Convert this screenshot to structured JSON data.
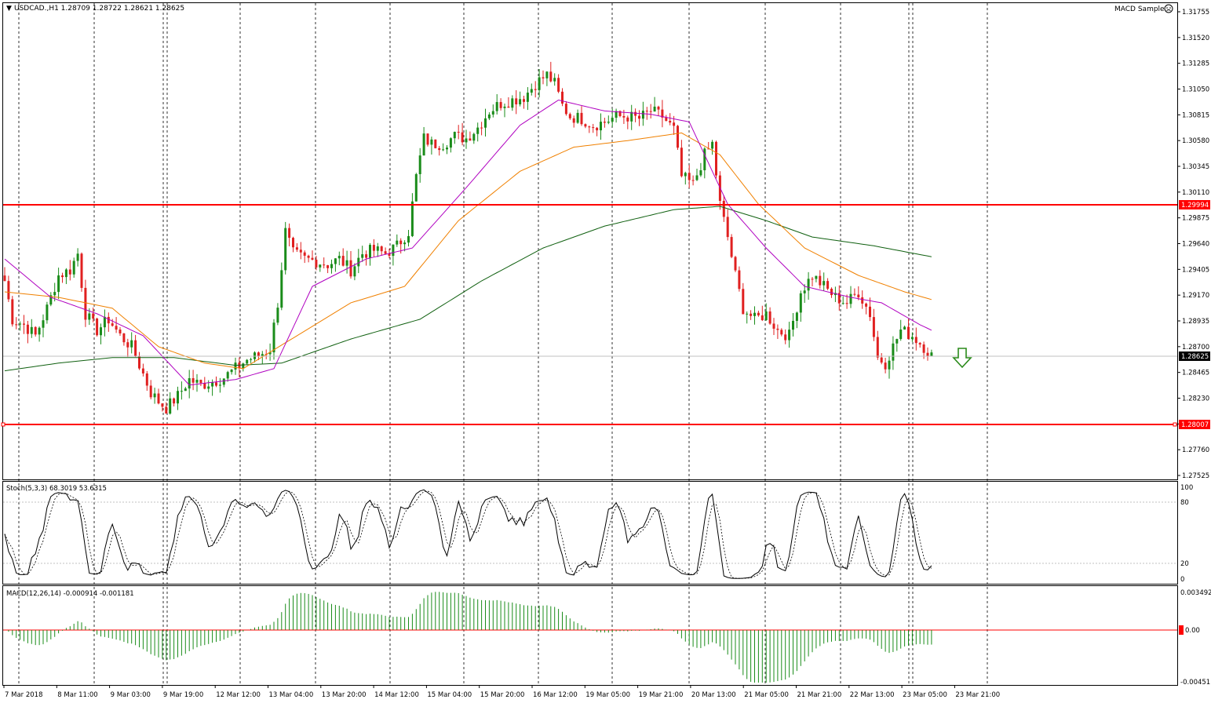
{
  "chart_title": "USDCAD.,H1  1.28709 1.28722 1.28621 1.28625",
  "expert_label": "MACD Sample",
  "colors": {
    "bull": "#1a8c1a",
    "bear": "#e02020",
    "level": "#ff0000",
    "ma_fast": "#b000c0",
    "ma_mid": "#f08000",
    "ma_slow": "#106010",
    "macd_hist": "#1a8c1a",
    "arrow": "#2a8a1a"
  },
  "price_levels": {
    "upper": "1.29994",
    "lower": "1.28007",
    "current": "1.28625"
  },
  "price_ticks": [
    "1.31755",
    "1.31520",
    "1.31285",
    "1.31050",
    "1.30815",
    "1.30580",
    "1.30345",
    "1.30110",
    "1.29875",
    "1.29640",
    "1.29405",
    "1.29170",
    "1.28935",
    "1.28700",
    "1.28465",
    "1.28230",
    "1.27995",
    "1.27760",
    "1.27525"
  ],
  "time_labels": [
    "7 Mar 2018",
    "8 Mar 11:00",
    "9 Mar 03:00",
    "9 Mar 19:00",
    "12 Mar 12:00",
    "13 Mar 04:00",
    "13 Mar 20:00",
    "14 Mar 12:00",
    "15 Mar 04:00",
    "15 Mar 20:00",
    "16 Mar 12:00",
    "19 Mar 05:00",
    "19 Mar 21:00",
    "20 Mar 13:00",
    "21 Mar 05:00",
    "21 Mar 21:00",
    "22 Mar 13:00",
    "23 Mar 05:00",
    "23 Mar 21:00"
  ],
  "stoch": {
    "label": "Stoch(5,3,3) 68.3019 53.6315",
    "ticks": [
      "100",
      "80",
      "20",
      "0"
    ]
  },
  "macd": {
    "label": "MACD(12,26,14) -0.000914 -0.001181",
    "ticks": [
      "0.003492",
      "0.00",
      "-0.00451"
    ]
  },
  "signal_arrow": "down-arrow-icon",
  "chart_data": {
    "type": "candlestick",
    "symbol": "USDCAD",
    "timeframe": "H1",
    "ylim": [
      1.27525,
      1.31755
    ],
    "horizontal_lines": [
      1.29994,
      1.28007
    ],
    "anchors": [
      [
        0,
        1.293
      ],
      [
        2,
        1.2895
      ],
      [
        5,
        1.289
      ],
      [
        8,
        1.288
      ],
      [
        11,
        1.2905
      ],
      [
        14,
        1.2935
      ],
      [
        17,
        1.294
      ],
      [
        19,
        1.2955
      ],
      [
        21,
        1.29
      ],
      [
        24,
        1.2885
      ],
      [
        27,
        1.2895
      ],
      [
        30,
        1.288
      ],
      [
        33,
        1.287
      ],
      [
        36,
        1.2845
      ],
      [
        38,
        1.2828
      ],
      [
        40,
        1.282
      ],
      [
        42,
        1.2814
      ],
      [
        45,
        1.2825
      ],
      [
        48,
        1.284
      ],
      [
        51,
        1.2835
      ],
      [
        54,
        1.2838
      ],
      [
        57,
        1.2842
      ],
      [
        60,
        1.285
      ],
      [
        63,
        1.2858
      ],
      [
        66,
        1.2862
      ],
      [
        69,
        1.2868
      ],
      [
        71,
        1.291
      ],
      [
        73,
        1.2975
      ],
      [
        75,
        1.2955
      ],
      [
        78,
        1.295
      ],
      [
        81,
        1.2948
      ],
      [
        84,
        1.2945
      ],
      [
        87,
        1.295
      ],
      [
        90,
        1.294
      ],
      [
        93,
        1.2955
      ],
      [
        96,
        1.2958
      ],
      [
        99,
        1.2955
      ],
      [
        102,
        1.2962
      ],
      [
        105,
        1.2975
      ],
      [
        107,
        1.3025
      ],
      [
        109,
        1.306
      ],
      [
        111,
        1.3055
      ],
      [
        114,
        1.3055
      ],
      [
        117,
        1.3062
      ],
      [
        120,
        1.306
      ],
      [
        123,
        1.307
      ],
      [
        126,
        1.3085
      ],
      [
        129,
        1.3092
      ],
      [
        132,
        1.3095
      ],
      [
        135,
        1.3098
      ],
      [
        138,
        1.311
      ],
      [
        141,
        1.3118
      ],
      [
        143,
        1.311
      ],
      [
        145,
        1.309
      ],
      [
        147,
        1.308
      ],
      [
        150,
        1.3078
      ],
      [
        153,
        1.3072
      ],
      [
        156,
        1.3075
      ],
      [
        159,
        1.308
      ],
      [
        162,
        1.308
      ],
      [
        165,
        1.3078
      ],
      [
        168,
        1.3085
      ],
      [
        171,
        1.308
      ],
      [
        174,
        1.3068
      ],
      [
        176,
        1.3025
      ],
      [
        179,
        1.3018
      ],
      [
        182,
        1.3045
      ],
      [
        184,
        1.3055
      ],
      [
        186,
        1.3
      ],
      [
        188,
        1.297
      ],
      [
        190,
        1.2935
      ],
      [
        192,
        1.2905
      ],
      [
        195,
        1.2895
      ],
      [
        198,
        1.29
      ],
      [
        201,
        1.2885
      ],
      [
        204,
        1.288
      ],
      [
        207,
        1.292
      ],
      [
        210,
        1.2935
      ],
      [
        213,
        1.2925
      ],
      [
        216,
        1.2915
      ],
      [
        219,
        1.291
      ],
      [
        222,
        1.292
      ],
      [
        225,
        1.29
      ],
      [
        227,
        1.286
      ],
      [
        229,
        1.2855
      ],
      [
        231,
        1.287
      ],
      [
        233,
        1.2885
      ],
      [
        236,
        1.288
      ],
      [
        239,
        1.287
      ],
      [
        241,
        1.2862
      ]
    ],
    "ma_fast": [
      [
        0,
        1.295
      ],
      [
        12,
        1.2915
      ],
      [
        24,
        1.29
      ],
      [
        36,
        1.288
      ],
      [
        48,
        1.2835
      ],
      [
        60,
        1.284
      ],
      [
        70,
        1.285
      ],
      [
        80,
        1.2925
      ],
      [
        94,
        1.295
      ],
      [
        106,
        1.296
      ],
      [
        120,
        1.3015
      ],
      [
        134,
        1.3072
      ],
      [
        144,
        1.3095
      ],
      [
        156,
        1.3085
      ],
      [
        168,
        1.3082
      ],
      [
        178,
        1.3075
      ],
      [
        188,
        1.3
      ],
      [
        198,
        1.296
      ],
      [
        208,
        1.2925
      ],
      [
        220,
        1.2915
      ],
      [
        228,
        1.291
      ],
      [
        238,
        1.289
      ],
      [
        241,
        1.2885
      ]
    ],
    "ma_mid": [
      [
        0,
        1.292
      ],
      [
        14,
        1.2915
      ],
      [
        28,
        1.2905
      ],
      [
        40,
        1.287
      ],
      [
        52,
        1.2855
      ],
      [
        62,
        1.285
      ],
      [
        76,
        1.288
      ],
      [
        90,
        1.291
      ],
      [
        104,
        1.2925
      ],
      [
        118,
        1.2985
      ],
      [
        134,
        1.303
      ],
      [
        148,
        1.3052
      ],
      [
        162,
        1.3058
      ],
      [
        176,
        1.3065
      ],
      [
        186,
        1.3045
      ],
      [
        196,
        1.3
      ],
      [
        208,
        1.296
      ],
      [
        222,
        1.2935
      ],
      [
        234,
        1.292
      ],
      [
        241,
        1.2913
      ]
    ],
    "ma_slow": [
      [
        0,
        1.2848
      ],
      [
        14,
        1.2855
      ],
      [
        28,
        1.286
      ],
      [
        44,
        1.286
      ],
      [
        60,
        1.2853
      ],
      [
        72,
        1.2855
      ],
      [
        90,
        1.2877
      ],
      [
        108,
        1.2895
      ],
      [
        124,
        1.293
      ],
      [
        140,
        1.296
      ],
      [
        156,
        1.298
      ],
      [
        174,
        1.2995
      ],
      [
        186,
        1.2998
      ],
      [
        198,
        1.2985
      ],
      [
        210,
        1.297
      ],
      [
        226,
        1.2962
      ],
      [
        241,
        1.2952
      ]
    ]
  }
}
